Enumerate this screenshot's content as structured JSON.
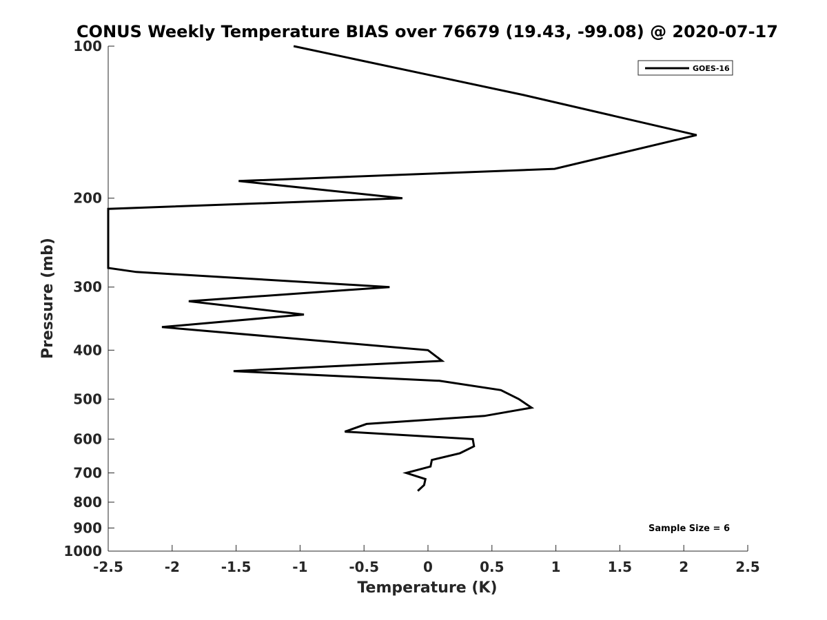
{
  "chart_data": {
    "type": "line",
    "title": "CONUS Weekly Temperature BIAS over 76679 (19.43, -99.08) @ 2020-07-17",
    "xlabel": "Temperature (K)",
    "ylabel": "Pressure (mb)",
    "xlim": [
      -2.5,
      2.5
    ],
    "ylim": [
      100,
      1000
    ],
    "y_scale": "log",
    "y_reversed": true,
    "x_ticks": [
      -2.5,
      -2,
      -1.5,
      -1,
      -0.5,
      0,
      0.5,
      1,
      1.5,
      2,
      2.5
    ],
    "x_tick_labels": [
      "-2.5",
      "-2",
      "-1.5",
      "-1",
      "-0.5",
      "0",
      "0.5",
      "1",
      "1.5",
      "2",
      "2.5"
    ],
    "y_ticks": [
      100,
      200,
      300,
      400,
      500,
      600,
      700,
      800,
      900,
      1000
    ],
    "y_tick_labels": [
      "100",
      "200",
      "300",
      "400",
      "500",
      "600",
      "700",
      "800",
      "900",
      "1000"
    ],
    "grid": false,
    "legend_position": "top-right",
    "series": [
      {
        "name": "GOES-16",
        "color": "#000000",
        "points": [
          {
            "x": -1.05,
            "y": 100
          },
          {
            "x": 0.75,
            "y": 125
          },
          {
            "x": 2.1,
            "y": 150
          },
          {
            "x": 0.99,
            "y": 175
          },
          {
            "x": -1.48,
            "y": 185
          },
          {
            "x": -0.2,
            "y": 200
          },
          {
            "x": -2.5,
            "y": 210
          },
          {
            "x": -2.5,
            "y": 275
          },
          {
            "x": -2.28,
            "y": 280
          },
          {
            "x": -0.3,
            "y": 300
          },
          {
            "x": -1.87,
            "y": 320
          },
          {
            "x": -0.97,
            "y": 340
          },
          {
            "x": -2.08,
            "y": 360
          },
          {
            "x": 0.0,
            "y": 400
          },
          {
            "x": 0.11,
            "y": 420
          },
          {
            "x": -1.52,
            "y": 440
          },
          {
            "x": 0.09,
            "y": 460
          },
          {
            "x": 0.57,
            "y": 480
          },
          {
            "x": 0.71,
            "y": 500
          },
          {
            "x": 0.81,
            "y": 520
          },
          {
            "x": 0.44,
            "y": 540
          },
          {
            "x": -0.48,
            "y": 560
          },
          {
            "x": -0.65,
            "y": 580
          },
          {
            "x": 0.35,
            "y": 600
          },
          {
            "x": 0.36,
            "y": 620
          },
          {
            "x": 0.25,
            "y": 640
          },
          {
            "x": 0.03,
            "y": 660
          },
          {
            "x": 0.02,
            "y": 680
          },
          {
            "x": -0.17,
            "y": 700
          },
          {
            "x": -0.02,
            "y": 720
          },
          {
            "x": -0.03,
            "y": 740
          },
          {
            "x": -0.08,
            "y": 760
          }
        ]
      }
    ],
    "annotations": [
      {
        "text": "Sample Size = 6",
        "position": "bottom-right"
      }
    ]
  }
}
